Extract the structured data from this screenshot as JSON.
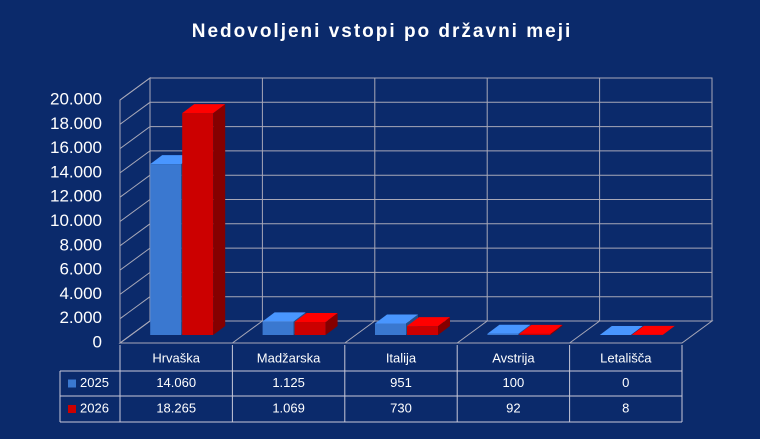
{
  "chart_data": {
    "type": "bar",
    "title": "Nedovoljeni vstopi po državni meji",
    "categories": [
      "Hrvaška",
      "Madžarska",
      "Italija",
      "Avstrija",
      "Letališča"
    ],
    "series": [
      {
        "name": "2025",
        "color": "#3a78d0",
        "values": [
          14060,
          1125,
          951,
          100,
          0
        ],
        "value_labels": [
          "14.060",
          "1.125",
          "951",
          "100",
          "0"
        ]
      },
      {
        "name": "2026",
        "color": "#cc0000",
        "values": [
          18265,
          1069,
          730,
          92,
          8
        ],
        "value_labels": [
          "18.265",
          "1.069",
          "730",
          "92",
          "8"
        ]
      }
    ],
    "ylim": [
      0,
      20000
    ],
    "yticks": [
      0,
      {
        "value": 2000,
        "label": "2.000"
      },
      {
        "value": 4000,
        "label": "4.000"
      },
      {
        "value": 6000,
        "label": "6.000"
      },
      {
        "value": 8000,
        "label": "8.000"
      },
      {
        "value": 10000,
        "label": "10.000"
      },
      {
        "value": 12000,
        "label": "12.000"
      },
      {
        "value": 14000,
        "label": "14.000"
      },
      {
        "value": 16000,
        "label": "16.000"
      },
      {
        "value": 18000,
        "label": "18.000"
      },
      {
        "value": 20000,
        "label": "20.000"
      }
    ],
    "grid": true
  }
}
